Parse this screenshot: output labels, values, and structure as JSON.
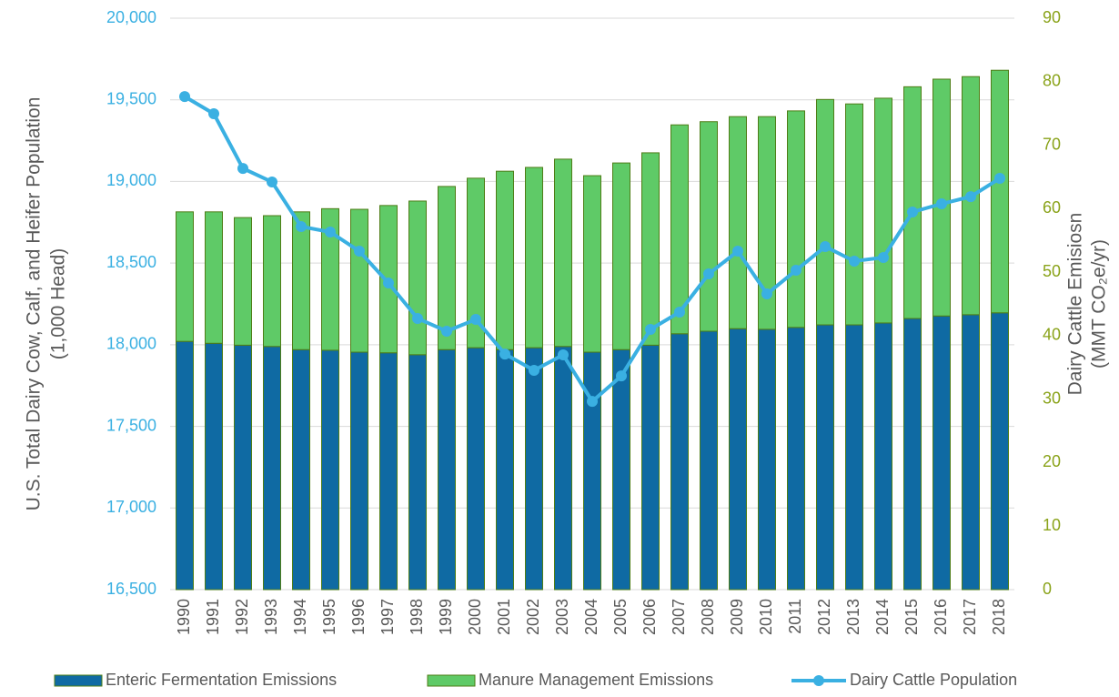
{
  "chart_data": {
    "type": "combo",
    "y_label": [
      "U.S. Total Dairy Cow, Calf, and Heifer Population",
      "(1,000 Head)"
    ],
    "y2_label": [
      "Dairy Cattle Emisiosn",
      "(MMT CO₂e/yr)"
    ],
    "categories": [
      "1990",
      "1991",
      "1992",
      "1993",
      "1994",
      "1995",
      "1996",
      "1997",
      "1998",
      "1999",
      "2000",
      "2001",
      "2002",
      "2003",
      "2004",
      "2005",
      "2006",
      "2007",
      "2008",
      "2009",
      "2010",
      "2011",
      "2012",
      "2013",
      "2014",
      "2015",
      "2016",
      "2017",
      "2018"
    ],
    "series": [
      {
        "name": "Enteric Fermentation Emissions",
        "type": "bar",
        "axis": "y2",
        "color": "#0f6aa3",
        "values": [
          39.1,
          38.8,
          38.5,
          38.3,
          37.8,
          37.7,
          37.4,
          37.3,
          37.0,
          37.8,
          38.1,
          37.8,
          38.1,
          38.3,
          37.4,
          37.8,
          38.5,
          40.3,
          40.7,
          41.1,
          41.0,
          41.3,
          41.7,
          41.7,
          42.0,
          42.7,
          43.1,
          43.3,
          43.6
        ]
      },
      {
        "name": "Manure Management Emissions",
        "type": "bar",
        "axis": "y2",
        "color": "#5fca67",
        "values": [
          20.4,
          20.7,
          20.1,
          20.6,
          21.7,
          22.3,
          22.5,
          23.2,
          24.2,
          25.7,
          26.7,
          28.1,
          28.4,
          29.5,
          27.8,
          29.4,
          30.3,
          32.9,
          33.0,
          33.4,
          33.5,
          34.1,
          35.5,
          34.8,
          35.4,
          36.5,
          37.3,
          37.5,
          38.2
        ]
      },
      {
        "name": "Dairy Cattle Population",
        "type": "line",
        "axis": "y",
        "color": "#3ab0e2",
        "values": [
          19520,
          19415,
          19080,
          18997,
          18724,
          18690,
          18573,
          18378,
          18161,
          18083,
          18155,
          17943,
          17843,
          17938,
          17653,
          17809,
          18094,
          18200,
          18434,
          18573,
          18311,
          18456,
          18601,
          18512,
          18534,
          18813,
          18863,
          18907,
          19019
        ]
      }
    ],
    "ylim": [
      16500,
      20000
    ],
    "yticks": [
      {
        "value": 16500,
        "label": "16,500"
      },
      {
        "value": 17000,
        "label": "17,000"
      },
      {
        "value": 17500,
        "label": "17,500"
      },
      {
        "value": 18000,
        "label": "18,000"
      },
      {
        "value": 18500,
        "label": "18,500"
      },
      {
        "value": 19000,
        "label": "19,000"
      },
      {
        "value": 19500,
        "label": "19,500"
      },
      {
        "value": 20000,
        "label": "20,000"
      }
    ],
    "y2lim": [
      0,
      90
    ],
    "y2ticks": [
      0,
      10,
      20,
      30,
      40,
      50,
      60,
      70,
      80,
      90
    ],
    "grid": true,
    "legend": "bottom"
  }
}
